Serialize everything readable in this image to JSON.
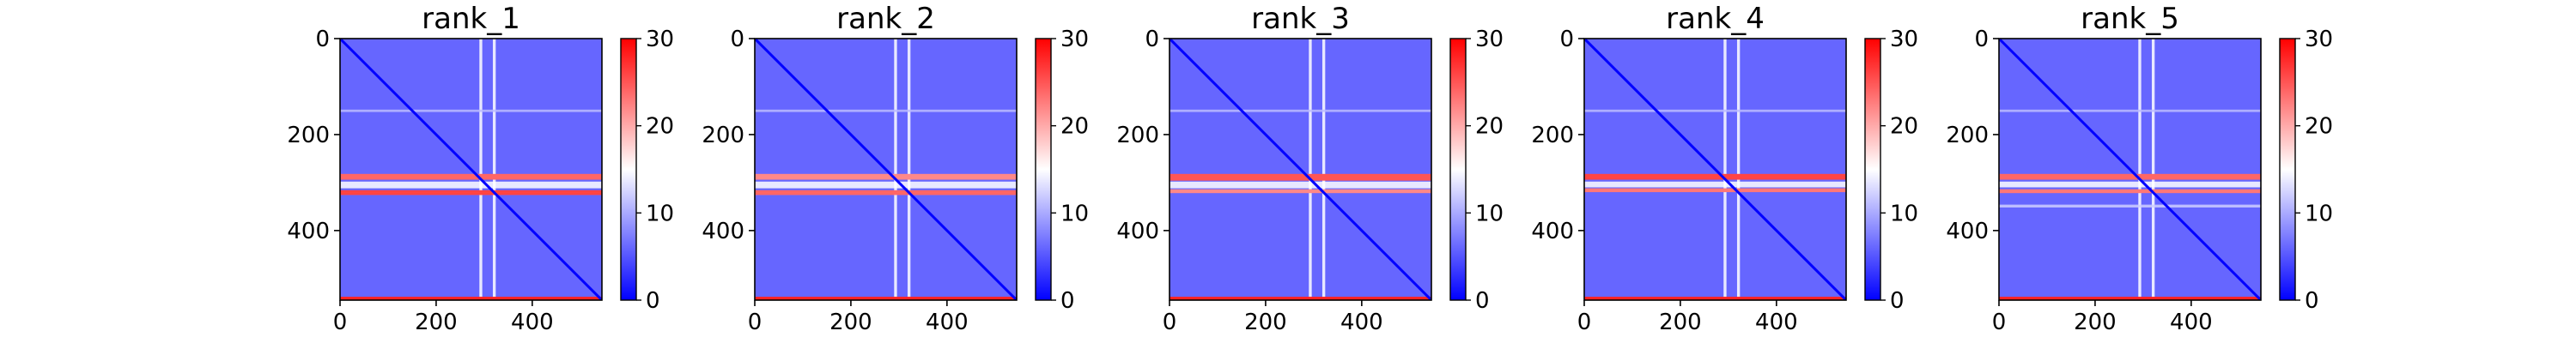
{
  "chart_data": [
    {
      "type": "heatmap",
      "title": "rank_1",
      "x_range": [
        0,
        545
      ],
      "y_range": [
        0,
        545
      ],
      "y_inverted": true,
      "x_ticks": [
        "0",
        "200",
        "400"
      ],
      "y_ticks": [
        "0",
        "200",
        "400"
      ],
      "x_tick_values": [
        0,
        200,
        400
      ],
      "y_tick_values": [
        0,
        200,
        400
      ],
      "colorbar": {
        "min": 0,
        "max": 30,
        "ticks": [
          "0",
          "10",
          "20",
          "30"
        ],
        "tick_values": [
          0,
          10,
          20,
          30
        ],
        "colormap": "bwr"
      },
      "background_value": 6,
      "diagonal_value": 0,
      "high_bands": [
        {
          "start": 282,
          "end": 294,
          "value": 24
        },
        {
          "start": 316,
          "end": 326,
          "value": 26
        }
      ],
      "light_bands": [
        {
          "start": 298,
          "end": 312,
          "value": 15
        },
        {
          "start": 148,
          "end": 153,
          "value": 11
        }
      ],
      "light_columns": [
        {
          "start": 290,
          "end": 296,
          "value": 15
        },
        {
          "start": 318,
          "end": 324,
          "value": 15
        }
      ],
      "bottom_edge": {
        "start": 538,
        "end": 545,
        "value": 28
      }
    },
    {
      "type": "heatmap",
      "title": "rank_2",
      "x_range": [
        0,
        545
      ],
      "y_range": [
        0,
        545
      ],
      "y_inverted": true,
      "x_ticks": [
        "0",
        "200",
        "400"
      ],
      "y_ticks": [
        "0",
        "200",
        "400"
      ],
      "x_tick_values": [
        0,
        200,
        400
      ],
      "y_tick_values": [
        0,
        200,
        400
      ],
      "colorbar": {
        "min": 0,
        "max": 30,
        "ticks": [
          "0",
          "10",
          "20",
          "30"
        ],
        "tick_values": [
          0,
          10,
          20,
          30
        ],
        "colormap": "bwr"
      },
      "background_value": 6,
      "diagonal_value": 0,
      "high_bands": [
        {
          "start": 282,
          "end": 294,
          "value": 22
        },
        {
          "start": 316,
          "end": 326,
          "value": 24
        }
      ],
      "light_bands": [
        {
          "start": 298,
          "end": 312,
          "value": 15
        },
        {
          "start": 148,
          "end": 153,
          "value": 11
        }
      ],
      "light_columns": [
        {
          "start": 290,
          "end": 296,
          "value": 15
        },
        {
          "start": 318,
          "end": 324,
          "value": 15
        }
      ],
      "bottom_edge": {
        "start": 538,
        "end": 545,
        "value": 28
      }
    },
    {
      "type": "heatmap",
      "title": "rank_3",
      "x_range": [
        0,
        545
      ],
      "y_range": [
        0,
        545
      ],
      "y_inverted": true,
      "x_ticks": [
        "0",
        "200",
        "400"
      ],
      "y_ticks": [
        "0",
        "200",
        "400"
      ],
      "x_tick_values": [
        0,
        200,
        400
      ],
      "y_tick_values": [
        0,
        200,
        400
      ],
      "colorbar": {
        "min": 0,
        "max": 30,
        "ticks": [
          "0",
          "10",
          "20",
          "30"
        ],
        "tick_values": [
          0,
          10,
          20,
          30
        ],
        "colormap": "bwr"
      },
      "background_value": 6,
      "diagonal_value": 0,
      "high_bands": [
        {
          "start": 282,
          "end": 296,
          "value": 25
        },
        {
          "start": 314,
          "end": 322,
          "value": 22
        }
      ],
      "light_bands": [
        {
          "start": 298,
          "end": 312,
          "value": 15
        },
        {
          "start": 148,
          "end": 153,
          "value": 11
        }
      ],
      "light_columns": [
        {
          "start": 290,
          "end": 296,
          "value": 15
        },
        {
          "start": 318,
          "end": 324,
          "value": 15
        }
      ],
      "bottom_edge": {
        "start": 538,
        "end": 545,
        "value": 28
      }
    },
    {
      "type": "heatmap",
      "title": "rank_4",
      "x_range": [
        0,
        545
      ],
      "y_range": [
        0,
        545
      ],
      "y_inverted": true,
      "x_ticks": [
        "0",
        "200",
        "400"
      ],
      "y_ticks": [
        "0",
        "200",
        "400"
      ],
      "x_tick_values": [
        0,
        200,
        400
      ],
      "y_tick_values": [
        0,
        200,
        400
      ],
      "colorbar": {
        "min": 0,
        "max": 30,
        "ticks": [
          "0",
          "10",
          "20",
          "30"
        ],
        "tick_values": [
          0,
          10,
          20,
          30
        ],
        "colormap": "bwr"
      },
      "background_value": 6,
      "diagonal_value": 0,
      "high_bands": [
        {
          "start": 282,
          "end": 294,
          "value": 26
        },
        {
          "start": 312,
          "end": 320,
          "value": 23
        }
      ],
      "light_bands": [
        {
          "start": 298,
          "end": 310,
          "value": 15
        },
        {
          "start": 148,
          "end": 153,
          "value": 11
        }
      ],
      "light_columns": [
        {
          "start": 290,
          "end": 296,
          "value": 15
        },
        {
          "start": 318,
          "end": 324,
          "value": 15
        }
      ],
      "bottom_edge": {
        "start": 538,
        "end": 545,
        "value": 28
      }
    },
    {
      "type": "heatmap",
      "title": "rank_5",
      "x_range": [
        0,
        545
      ],
      "y_range": [
        0,
        545
      ],
      "y_inverted": true,
      "x_ticks": [
        "0",
        "200",
        "400"
      ],
      "y_ticks": [
        "0",
        "200",
        "400"
      ],
      "x_tick_values": [
        0,
        200,
        400
      ],
      "y_tick_values": [
        0,
        200,
        400
      ],
      "colorbar": {
        "min": 0,
        "max": 30,
        "ticks": [
          "0",
          "10",
          "20",
          "30"
        ],
        "tick_values": [
          0,
          10,
          20,
          30
        ],
        "colormap": "bwr"
      },
      "background_value": 6,
      "diagonal_value": 0,
      "high_bands": [
        {
          "start": 282,
          "end": 294,
          "value": 24
        },
        {
          "start": 314,
          "end": 322,
          "value": 23
        }
      ],
      "light_bands": [
        {
          "start": 298,
          "end": 310,
          "value": 15
        },
        {
          "start": 346,
          "end": 352,
          "value": 12
        },
        {
          "start": 148,
          "end": 153,
          "value": 11
        }
      ],
      "light_columns": [
        {
          "start": 290,
          "end": 296,
          "value": 15
        },
        {
          "start": 318,
          "end": 324,
          "value": 15
        }
      ],
      "bottom_edge": {
        "start": 538,
        "end": 545,
        "value": 28
      }
    }
  ]
}
